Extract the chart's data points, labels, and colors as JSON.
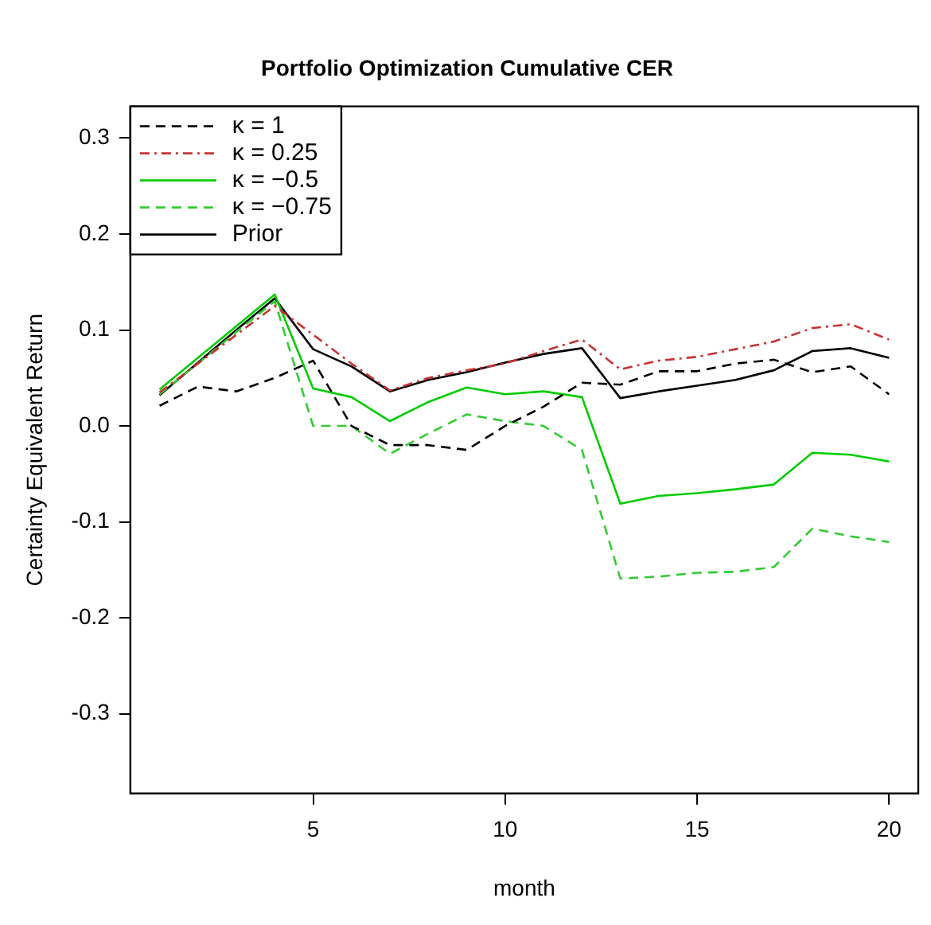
{
  "chart_data": {
    "type": "line",
    "title": "Portfolio Optimization Cumulative CER",
    "xlabel": "month",
    "ylabel": "Certainty Equivalent Return",
    "x": [
      1,
      2,
      3,
      4,
      5,
      6,
      7,
      8,
      9,
      10,
      11,
      12,
      13,
      14,
      15,
      16,
      17,
      18,
      19,
      20
    ],
    "xlim": [
      0.24,
      20.76
    ],
    "xticks": [
      5,
      10,
      15,
      20
    ],
    "ylim": [
      -0.383,
      0.333
    ],
    "yticks": [
      -0.3,
      -0.2,
      -0.1,
      {
        "value": 0,
        "label": "0.0"
      },
      0.1,
      0.2,
      0.3
    ],
    "grid": false,
    "legend": "top left",
    "marker": "none",
    "series": [
      {
        "name": "κ = 1",
        "color": "#000000",
        "line_style": "dashed",
        "values": [
          0.021,
          0.041,
          0.036,
          0.05,
          0.068,
          0.0,
          -0.02,
          -0.02,
          -0.025,
          0.0,
          0.02,
          0.045,
          0.043,
          0.057,
          0.057,
          0.065,
          0.069,
          0.056,
          0.062,
          0.033
        ]
      },
      {
        "name": "κ = 0.25",
        "color": "#c83232",
        "line_style": "dotted",
        "values": [
          0.035,
          0.065,
          0.095,
          0.125,
          0.095,
          0.065,
          0.037,
          0.05,
          0.058,
          0.065,
          0.078,
          0.09,
          0.059,
          0.068,
          0.072,
          0.08,
          0.088,
          0.102,
          0.106,
          0.09
        ]
      },
      {
        "name": "κ = −0.5",
        "color": "#00cc00",
        "line_style": "solid",
        "values": [
          0.038,
          0.071,
          0.104,
          0.137,
          0.039,
          0.03,
          0.005,
          0.025,
          0.04,
          0.033,
          0.036,
          0.03,
          -0.081,
          -0.073,
          -0.07,
          -0.066,
          -0.061,
          -0.028,
          -0.03,
          -0.037
        ]
      },
      {
        "name": "κ = −0.75",
        "color": "#33cc33",
        "line_style": "dashed",
        "values": [
          0.033,
          0.065,
          0.098,
          0.13,
          0.0,
          0.0,
          -0.029,
          -0.008,
          0.012,
          0.005,
          0.0,
          -0.025,
          -0.159,
          -0.157,
          -0.153,
          -0.152,
          -0.147,
          -0.107,
          -0.115,
          -0.121
        ]
      },
      {
        "name": "Prior",
        "color": "#000000",
        "line_style": "solid",
        "values": [
          0.032,
          0.066,
          0.1,
          0.133,
          0.08,
          0.062,
          0.036,
          0.048,
          0.056,
          0.066,
          0.075,
          0.081,
          0.029,
          0.036,
          0.042,
          0.048,
          0.058,
          0.078,
          0.081,
          0.071
        ]
      }
    ]
  }
}
